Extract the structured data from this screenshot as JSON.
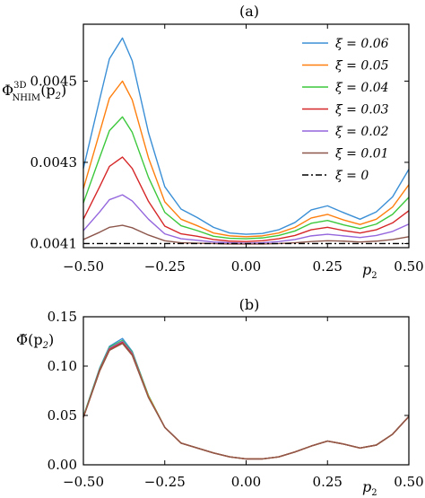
{
  "chart_data": [
    {
      "type": "line",
      "title": "(a)",
      "ylabel": "Φ",
      "ylabel_sup": "3D",
      "ylabel_sub": "NHIM",
      "ylabel_arg": "(p",
      "ylabel_arg_sub": "2",
      "ylabel_arg_close": ")",
      "xlabel": "p",
      "xlabel_sub": "2",
      "xlim": [
        -0.5,
        0.5
      ],
      "ylim": [
        0.00409,
        0.00464
      ],
      "xticks": [
        -0.5,
        -0.25,
        0.0,
        0.25,
        0.5
      ],
      "xtick_labels": [
        "−0.50",
        "−0.25",
        "0.00",
        "0.25",
        "0.50"
      ],
      "yticks": [
        0.0041,
        0.0043,
        0.0045
      ],
      "ytick_labels": [
        "0.0041",
        "0.0043",
        "0.0045"
      ],
      "legend_position": "top-right",
      "legend_symbol": "ξ =",
      "x": [
        -0.5,
        -0.45,
        -0.42,
        -0.38,
        -0.35,
        -0.3,
        -0.25,
        -0.2,
        -0.15,
        -0.1,
        -0.05,
        0.0,
        0.05,
        0.1,
        0.15,
        0.2,
        0.25,
        0.3,
        0.35,
        0.4,
        0.45,
        0.5
      ],
      "series": [
        {
          "name": "0.06",
          "color": "#3a8fd6",
          "dash": "",
          "values": [
            0.004285,
            0.004455,
            0.004555,
            0.004606,
            0.00455,
            0.004373,
            0.00424,
            0.004185,
            0.004164,
            0.00414,
            0.004126,
            0.004123,
            0.004125,
            0.004134,
            0.004152,
            0.004183,
            0.004193,
            0.004176,
            0.00416,
            0.004178,
            0.004215,
            0.004283
          ]
        },
        {
          "name": "0.05",
          "color": "#ff7f0e",
          "dash": "",
          "values": [
            0.004235,
            0.004374,
            0.004458,
            0.0045,
            0.004454,
            0.004311,
            0.004203,
            0.00416,
            0.004144,
            0.004126,
            0.004119,
            0.004117,
            0.004119,
            0.004126,
            0.00414,
            0.004163,
            0.004172,
            0.004158,
            0.004147,
            0.00416,
            0.00419,
            0.004245
          ]
        },
        {
          "name": "0.04",
          "color": "#3cc83c",
          "dash": "",
          "values": [
            0.0042,
            0.004312,
            0.004378,
            0.004412,
            0.004374,
            0.004263,
            0.004177,
            0.004144,
            0.004132,
            0.004118,
            0.004113,
            0.004112,
            0.004114,
            0.00412,
            0.004131,
            0.00415,
            0.004157,
            0.004146,
            0.004137,
            0.004148,
            0.004172,
            0.004214
          ]
        },
        {
          "name": "0.03",
          "color": "#d62728",
          "dash": "",
          "values": [
            0.00416,
            0.00424,
            0.00429,
            0.004313,
            0.004285,
            0.004204,
            0.004143,
            0.004124,
            0.004118,
            0.00411,
            0.004106,
            0.004105,
            0.004107,
            0.004112,
            0.00412,
            0.004134,
            0.00414,
            0.004132,
            0.004126,
            0.004134,
            0.004151,
            0.004181
          ]
        },
        {
          "name": "0.02",
          "color": "#9467dd",
          "dash": "",
          "values": [
            0.004132,
            0.004178,
            0.004208,
            0.00422,
            0.004205,
            0.00416,
            0.004124,
            0.004112,
            0.004108,
            0.004104,
            0.004102,
            0.004101,
            0.004102,
            0.004105,
            0.00411,
            0.004119,
            0.004123,
            0.004119,
            0.004115,
            0.00412,
            0.00413,
            0.004148
          ]
        },
        {
          "name": "0.01",
          "color": "#8c564b",
          "dash": "",
          "values": [
            0.00411,
            0.004128,
            0.00414,
            0.004145,
            0.004139,
            0.004121,
            0.004107,
            0.004102,
            0.004101,
            0.0041,
            0.004099,
            0.004099,
            0.004099,
            0.0041,
            0.004102,
            0.004105,
            0.004107,
            0.004106,
            0.004104,
            0.004106,
            0.00411,
            0.004117
          ]
        },
        {
          "name": "0",
          "color": "#000000",
          "dash": "7,3,2,3",
          "values": [
            0.0041,
            0.0041,
            0.0041,
            0.0041,
            0.0041,
            0.0041,
            0.0041,
            0.0041,
            0.0041,
            0.0041,
            0.0041,
            0.0041,
            0.0041,
            0.0041,
            0.0041,
            0.0041,
            0.0041,
            0.0041,
            0.0041,
            0.0041,
            0.0041,
            0.0041
          ]
        }
      ]
    },
    {
      "type": "line",
      "title": "(b)",
      "ylabel": "Φ̃(p",
      "ylabel_sub": "2",
      "ylabel_close": ")",
      "xlabel": "p",
      "xlabel_sub": "2",
      "xlim": [
        -0.5,
        0.5
      ],
      "ylim": [
        0.0,
        0.15
      ],
      "xticks": [
        -0.5,
        -0.25,
        0.0,
        0.25,
        0.5
      ],
      "xtick_labels": [
        "−0.50",
        "−0.25",
        "0.00",
        "0.25",
        "0.50"
      ],
      "yticks": [
        0.0,
        0.05,
        0.1,
        0.15
      ],
      "ytick_labels": [
        "0.00",
        "0.05",
        "0.10",
        "0.15"
      ],
      "x": [
        -0.5,
        -0.45,
        -0.42,
        -0.38,
        -0.35,
        -0.3,
        -0.25,
        -0.2,
        -0.15,
        -0.1,
        -0.05,
        0.0,
        0.05,
        0.1,
        0.15,
        0.2,
        0.25,
        0.3,
        0.35,
        0.4,
        0.45,
        0.5
      ],
      "series": [
        {
          "color": "#3a8fd6",
          "values": [
            0.049,
            0.098,
            0.12,
            0.128,
            0.115,
            0.07,
            0.038,
            0.022,
            0.017,
            0.012,
            0.008,
            0.006,
            0.006,
            0.008,
            0.013,
            0.019,
            0.024,
            0.021,
            0.017,
            0.02,
            0.031,
            0.049
          ]
        },
        {
          "color": "#3cc83c",
          "values": [
            0.049,
            0.097,
            0.119,
            0.126,
            0.114,
            0.07,
            0.038,
            0.022,
            0.017,
            0.012,
            0.008,
            0.006,
            0.006,
            0.008,
            0.013,
            0.019,
            0.024,
            0.021,
            0.017,
            0.02,
            0.031,
            0.049
          ]
        },
        {
          "color": "#9467dd",
          "values": [
            0.048,
            0.096,
            0.118,
            0.125,
            0.113,
            0.069,
            0.038,
            0.022,
            0.017,
            0.012,
            0.008,
            0.006,
            0.006,
            0.008,
            0.013,
            0.019,
            0.024,
            0.021,
            0.017,
            0.02,
            0.031,
            0.049
          ]
        },
        {
          "color": "#d62728",
          "values": [
            0.048,
            0.096,
            0.117,
            0.124,
            0.112,
            0.069,
            0.038,
            0.022,
            0.017,
            0.012,
            0.008,
            0.006,
            0.006,
            0.008,
            0.013,
            0.019,
            0.024,
            0.021,
            0.017,
            0.02,
            0.031,
            0.049
          ]
        },
        {
          "color": "#ff7f0e",
          "values": [
            0.048,
            0.095,
            0.116,
            0.123,
            0.111,
            0.069,
            0.038,
            0.022,
            0.017,
            0.012,
            0.008,
            0.006,
            0.006,
            0.008,
            0.013,
            0.019,
            0.024,
            0.021,
            0.017,
            0.02,
            0.031,
            0.049
          ]
        },
        {
          "color": "#8c564b",
          "values": [
            0.048,
            0.095,
            0.116,
            0.123,
            0.111,
            0.068,
            0.038,
            0.022,
            0.017,
            0.012,
            0.008,
            0.006,
            0.006,
            0.008,
            0.013,
            0.019,
            0.024,
            0.021,
            0.017,
            0.02,
            0.031,
            0.049
          ]
        }
      ]
    }
  ]
}
